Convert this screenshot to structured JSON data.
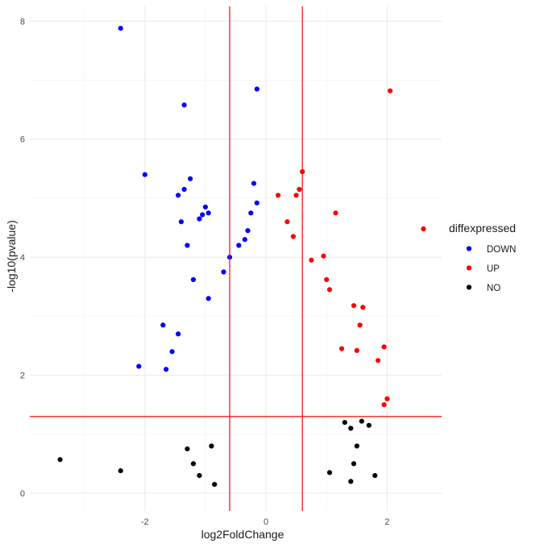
{
  "chart_data": {
    "type": "scatter",
    "title": "",
    "xlabel": "log2FoldChange",
    "ylabel": "-log10(pvalue)",
    "xlim": [
      -3.9,
      2.9
    ],
    "ylim": [
      -0.3,
      8.25
    ],
    "x_ticks": [
      -2,
      0,
      2
    ],
    "y_ticks": [
      0,
      2,
      4,
      6,
      8
    ],
    "grid": true,
    "thresholds": {
      "log2fc": [
        -0.6,
        0.6
      ],
      "neg_log10_p": 1.3,
      "color": "#ff0000"
    },
    "legend": {
      "title": "diffexpressed",
      "position": "right",
      "entries": [
        {
          "label": "DOWN",
          "color": "#0000ff"
        },
        {
          "label": "UP",
          "color": "#ff0000"
        },
        {
          "label": "NO",
          "color": "#000000"
        }
      ]
    },
    "series": [
      {
        "name": "DOWN",
        "color": "#0000ff",
        "points": [
          [
            -2.4,
            7.88
          ],
          [
            -1.35,
            6.58
          ],
          [
            -0.15,
            6.85
          ],
          [
            -2.0,
            5.4
          ],
          [
            -1.25,
            5.33
          ],
          [
            -1.45,
            5.05
          ],
          [
            -1.35,
            5.15
          ],
          [
            -1.0,
            4.85
          ],
          [
            -0.95,
            4.75
          ],
          [
            -1.05,
            4.72
          ],
          [
            -1.1,
            4.65
          ],
          [
            -1.4,
            4.6
          ],
          [
            -1.3,
            4.2
          ],
          [
            -0.2,
            5.25
          ],
          [
            -0.3,
            4.45
          ],
          [
            -0.45,
            4.2
          ],
          [
            -0.15,
            4.92
          ],
          [
            -0.7,
            3.75
          ],
          [
            -1.2,
            3.62
          ],
          [
            -1.7,
            2.85
          ],
          [
            -2.1,
            2.15
          ],
          [
            -0.25,
            4.75
          ],
          [
            -0.35,
            4.3
          ],
          [
            -0.6,
            4.0
          ],
          [
            -1.55,
            2.4
          ],
          [
            -1.65,
            2.1
          ],
          [
            -0.95,
            3.3
          ],
          [
            -1.45,
            2.7
          ]
        ]
      },
      {
        "name": "UP",
        "color": "#ff0000",
        "points": [
          [
            2.05,
            6.82
          ],
          [
            2.6,
            4.48
          ],
          [
            1.15,
            4.75
          ],
          [
            0.6,
            5.45
          ],
          [
            0.2,
            5.05
          ],
          [
            0.55,
            5.15
          ],
          [
            0.5,
            5.05
          ],
          [
            0.95,
            4.02
          ],
          [
            0.75,
            3.95
          ],
          [
            1.45,
            3.18
          ],
          [
            1.6,
            3.15
          ],
          [
            1.5,
            2.42
          ],
          [
            1.95,
            2.48
          ],
          [
            1.85,
            2.25
          ],
          [
            2.0,
            1.6
          ],
          [
            1.95,
            1.5
          ],
          [
            1.55,
            2.85
          ],
          [
            1.25,
            2.45
          ],
          [
            1.05,
            3.45
          ],
          [
            1.0,
            3.62
          ],
          [
            0.35,
            4.6
          ],
          [
            0.45,
            4.35
          ]
        ]
      },
      {
        "name": "NO",
        "color": "#000000",
        "points": [
          [
            -3.4,
            0.57
          ],
          [
            -2.4,
            0.38
          ],
          [
            1.8,
            0.3
          ],
          [
            1.4,
            0.2
          ],
          [
            1.45,
            0.5
          ],
          [
            1.4,
            1.1
          ],
          [
            1.58,
            1.22
          ],
          [
            1.7,
            1.15
          ],
          [
            1.3,
            1.2
          ],
          [
            1.5,
            0.8
          ],
          [
            -1.2,
            0.5
          ],
          [
            -1.1,
            0.3
          ],
          [
            -0.9,
            0.8
          ],
          [
            -1.3,
            0.75
          ],
          [
            -0.85,
            0.15
          ],
          [
            1.05,
            0.35
          ]
        ]
      }
    ]
  }
}
